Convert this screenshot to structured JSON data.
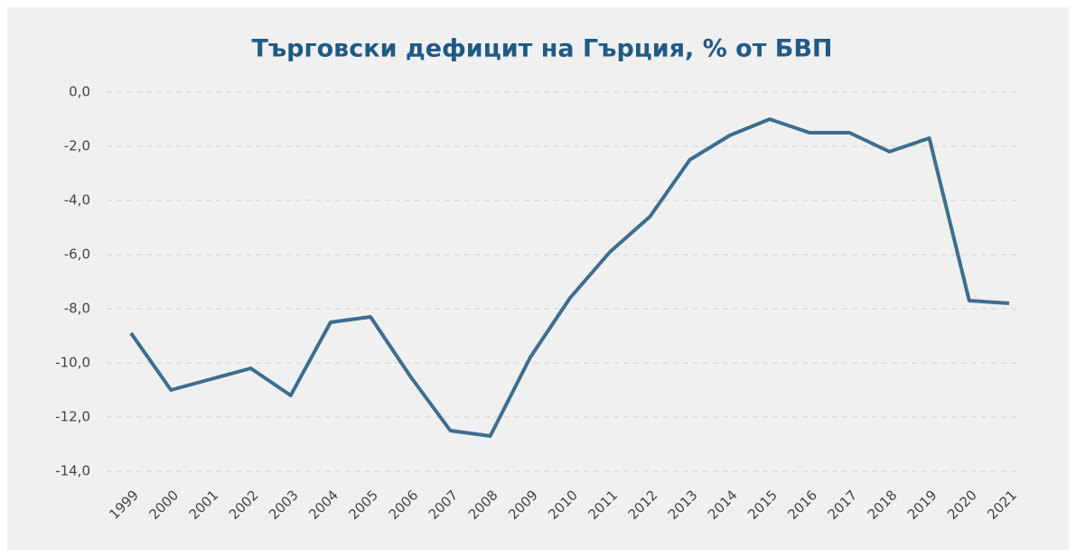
{
  "chart_data": {
    "type": "line",
    "title": "Търговски дефицит на Гърция, % от БВП",
    "categories": [
      "1999",
      "2000",
      "2001",
      "2002",
      "2003",
      "2004",
      "2005",
      "2006",
      "2007",
      "2008",
      "2009",
      "2010",
      "2011",
      "2012",
      "2013",
      "2014",
      "2015",
      "2016",
      "2017",
      "2018",
      "2019",
      "2020",
      "2021"
    ],
    "values": [
      -8.9,
      -11.0,
      -10.6,
      -10.2,
      -11.2,
      -8.5,
      -8.3,
      -10.5,
      -12.5,
      -12.7,
      -9.8,
      -7.6,
      -5.9,
      -4.6,
      -2.5,
      -1.6,
      -1.0,
      -1.5,
      -1.5,
      -2.2,
      -1.7,
      -7.7,
      -7.8
    ],
    "color": "#3d6e8f",
    "ylim": [
      -14,
      0
    ],
    "yticks": [
      {
        "value": 0,
        "label": "0,0"
      },
      {
        "value": -2,
        "label": "-2,0"
      },
      {
        "value": -4,
        "label": "-4,0"
      },
      {
        "value": -6,
        "label": "-6,0"
      },
      {
        "value": -8,
        "label": "-8,0"
      },
      {
        "value": -10,
        "label": "-10,0"
      },
      {
        "value": -12,
        "label": "-12,0"
      },
      {
        "value": -14,
        "label": "-14,0"
      }
    ],
    "grid": true
  }
}
